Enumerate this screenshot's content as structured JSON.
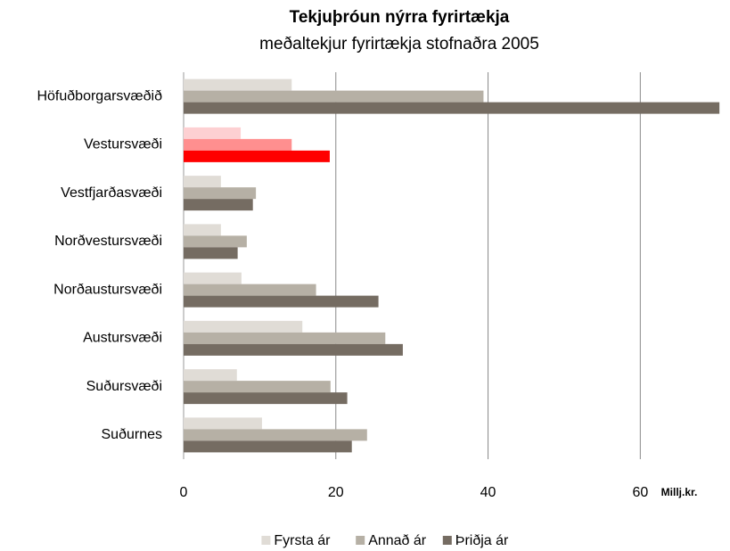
{
  "chart_data": {
    "type": "hbar",
    "title": "Tekjuþróun nýrra fyrirtækja",
    "subtitle": "meðaltekjur fyrirtækja stofnaðra 2005",
    "x_label": "Millj.kr.",
    "categories": [
      "Höfuðborgarsvæðið",
      "Vestursvæði",
      "Vestfjarðasvæði",
      "Norðvestursvæði",
      "Norðaustursvæði",
      "Austursvæði",
      "Suðursvæði",
      "Suðurnes"
    ],
    "series": [
      {
        "name": "Fyrsta ár",
        "color": "#e0dcd6",
        "values": [
          14.2,
          7.5,
          4.9,
          4.9,
          7.6,
          15.6,
          7.0,
          10.3
        ]
      },
      {
        "name": "Annað ár",
        "color": "#b6b0a5",
        "values": [
          39.4,
          14.2,
          9.5,
          8.3,
          17.4,
          26.5,
          19.3,
          24.1
        ]
      },
      {
        "name": "Þriðja ár",
        "color": "#756c62",
        "values": [
          70.4,
          19.2,
          9.1,
          7.1,
          25.6,
          28.8,
          21.5,
          22.1
        ]
      }
    ],
    "highlight": {
      "category": 1,
      "colors": [
        "#fdd0d2",
        "#ff8f8f",
        "#ff0000"
      ]
    },
    "xlim": [
      0,
      70.5
    ],
    "xticks": [
      0,
      20,
      40,
      60
    ],
    "grid": true,
    "legend": "bottom"
  }
}
